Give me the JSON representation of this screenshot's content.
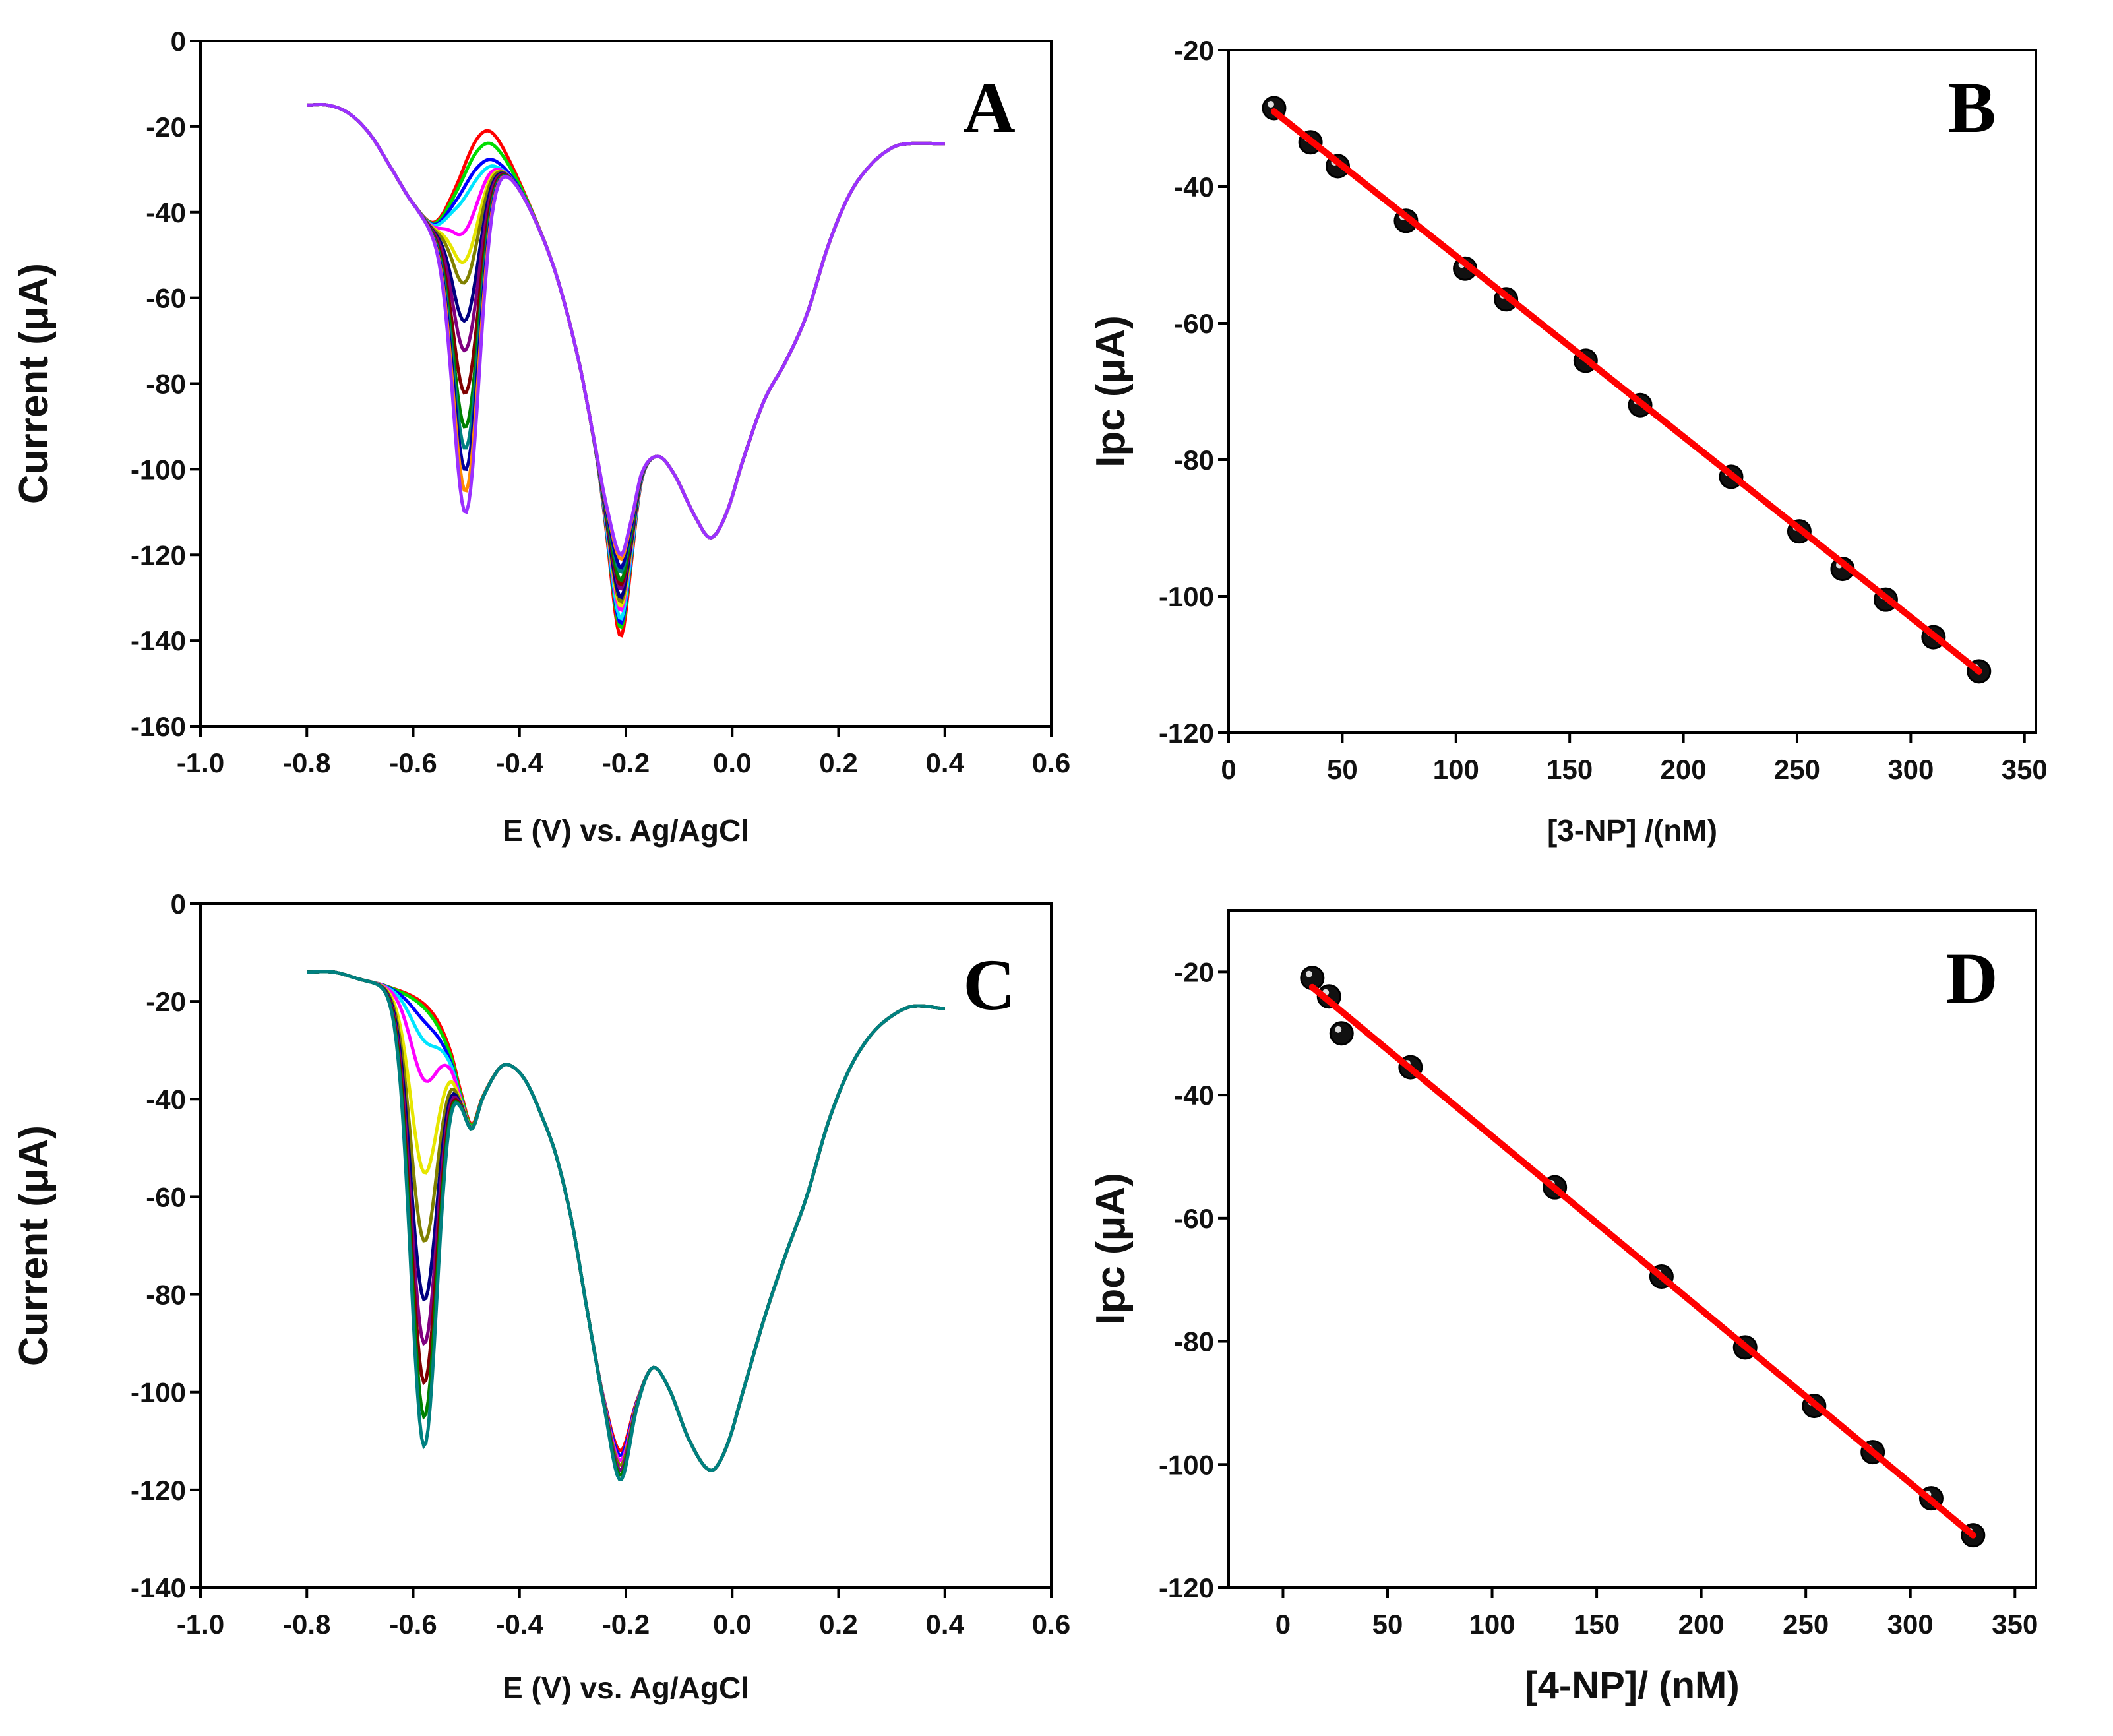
{
  "chart_data": [
    {
      "panel": "A",
      "type": "line",
      "xlabel": "E (V) vs. Ag/AgCl",
      "ylabel": "Current (μA)",
      "xlim": [
        -1.0,
        0.6
      ],
      "ylim": [
        -160,
        0
      ],
      "xticks": [
        "-1.0",
        "-0.8",
        "-0.6",
        "-0.4",
        "-0.2",
        "0.0",
        "0.2",
        "0.4",
        "0.6"
      ],
      "yticks": [
        "0",
        "-20",
        "-40",
        "-60",
        "-80",
        "-100",
        "-120",
        "-140",
        "-160"
      ],
      "grid": false,
      "baseline": [
        [
          -0.8,
          -15
        ],
        [
          -0.76,
          -15
        ],
        [
          -0.72,
          -17
        ],
        [
          -0.68,
          -22
        ],
        [
          -0.64,
          -30
        ],
        [
          -0.6,
          -38
        ],
        [
          -0.56,
          -43
        ],
        [
          -0.52,
          -38
        ],
        [
          -0.48,
          -31
        ],
        [
          -0.45,
          -29
        ],
        [
          -0.41,
          -33
        ],
        [
          -0.37,
          -42
        ],
        [
          -0.33,
          -55
        ],
        [
          -0.29,
          -74
        ],
        [
          -0.26,
          -93
        ],
        [
          -0.235,
          -110
        ],
        [
          -0.21,
          -122
        ],
        [
          -0.19,
          -113
        ],
        [
          -0.17,
          -101
        ],
        [
          -0.14,
          -97
        ],
        [
          -0.11,
          -101
        ],
        [
          -0.07,
          -111
        ],
        [
          -0.04,
          -116
        ],
        [
          -0.01,
          -110
        ],
        [
          0.02,
          -98
        ],
        [
          0.06,
          -84
        ],
        [
          0.1,
          -75
        ],
        [
          0.14,
          -64
        ],
        [
          0.18,
          -48
        ],
        [
          0.22,
          -36
        ],
        [
          0.26,
          -29
        ],
        [
          0.3,
          -25
        ],
        [
          0.33,
          -24
        ],
        [
          0.4,
          -24
        ]
      ],
      "peak_E": -0.5,
      "series": [
        {
          "color": "#ff0000",
          "peak_I": -26,
          "peak2_I": -139
        },
        {
          "color": "#00dd00",
          "peak_I": -29,
          "peak2_I": -137
        },
        {
          "color": "#0000ff",
          "peak_I": -33,
          "peak2_I": -136
        },
        {
          "color": "#00e5ff",
          "peak_I": -36,
          "peak2_I": -135
        },
        {
          "color": "#ff00ff",
          "peak_I": -44,
          "peak2_I": -133
        },
        {
          "color": "#e6e600",
          "peak_I": -51,
          "peak2_I": -132
        },
        {
          "color": "#808000",
          "peak_I": -56,
          "peak2_I": -131
        },
        {
          "color": "#000080",
          "peak_I": -65,
          "peak2_I": -130
        },
        {
          "color": "#800080",
          "peak_I": -72,
          "peak2_I": -128
        },
        {
          "color": "#800000",
          "peak_I": -82,
          "peak2_I": -127
        },
        {
          "color": "#008000",
          "peak_I": -90,
          "peak2_I": -126
        },
        {
          "color": "#008080",
          "peak_I": -95,
          "peak2_I": -124
        },
        {
          "color": "#0000a0",
          "peak_I": -100,
          "peak2_I": -123
        },
        {
          "color": "#ff8c00",
          "peak_I": -105,
          "peak2_I": -121
        },
        {
          "color": "#9b30ff",
          "peak_I": -110,
          "peak2_I": -120
        }
      ]
    },
    {
      "panel": "B",
      "type": "scatter",
      "xlabel": "[3-NP] /(nM)",
      "ylabel": "Ipc (μA)",
      "xlim": [
        0,
        355
      ],
      "ylim": [
        -120,
        -20
      ],
      "xticks": [
        "0",
        "50",
        "100",
        "150",
        "200",
        "250",
        "300",
        "350"
      ],
      "yticks": [
        "-20",
        "-40",
        "-60",
        "-80",
        "-100",
        "-120"
      ],
      "grid": false,
      "x": [
        20,
        36,
        48,
        78,
        104,
        122,
        157,
        181,
        221,
        251,
        270,
        289,
        310,
        330
      ],
      "y": [
        -28.5,
        -33.5,
        -37,
        -45,
        -52,
        -56.5,
        -65.5,
        -72,
        -82.5,
        -90.5,
        -96,
        -100.5,
        -106,
        -111
      ],
      "fit": {
        "x": [
          20,
          330
        ],
        "y": [
          -29,
          -111
        ],
        "color": "#ff0000"
      }
    },
    {
      "panel": "C",
      "type": "line",
      "xlabel": "E (V) vs. Ag/AgCl",
      "ylabel": "Current (μA)",
      "xlim": [
        -1.0,
        0.6
      ],
      "ylim": [
        -140,
        0
      ],
      "xticks": [
        "-1.0",
        "-0.8",
        "-0.6",
        "-0.4",
        "-0.2",
        "0.0",
        "0.2",
        "0.4",
        "0.6"
      ],
      "yticks": [
        "0",
        "-20",
        "-40",
        "-60",
        "-80",
        "-100",
        "-120",
        "-140"
      ],
      "grid": false,
      "baseline": [
        [
          -0.8,
          -14
        ],
        [
          -0.75,
          -14
        ],
        [
          -0.7,
          -15.5
        ],
        [
          -0.65,
          -17
        ],
        [
          -0.6,
          -20
        ],
        [
          -0.56,
          -25
        ],
        [
          -0.53,
          -32
        ],
        [
          -0.51,
          -40
        ],
        [
          -0.49,
          -46
        ],
        [
          -0.47,
          -40
        ],
        [
          -0.44,
          -34
        ],
        [
          -0.42,
          -33
        ],
        [
          -0.39,
          -36
        ],
        [
          -0.36,
          -43
        ],
        [
          -0.33,
          -52
        ],
        [
          -0.3,
          -66
        ],
        [
          -0.27,
          -85
        ],
        [
          -0.24,
          -102
        ],
        [
          -0.21,
          -112
        ],
        [
          -0.18,
          -102
        ],
        [
          -0.15,
          -95
        ],
        [
          -0.12,
          -99
        ],
        [
          -0.08,
          -110
        ],
        [
          -0.04,
          -116
        ],
        [
          -0.01,
          -111
        ],
        [
          0.02,
          -100
        ],
        [
          0.06,
          -85
        ],
        [
          0.1,
          -72
        ],
        [
          0.14,
          -60
        ],
        [
          0.18,
          -45
        ],
        [
          0.22,
          -34
        ],
        [
          0.26,
          -27
        ],
        [
          0.3,
          -23
        ],
        [
          0.34,
          -21
        ],
        [
          0.4,
          -21.5
        ]
      ],
      "peak_E": -0.58,
      "series": [
        {
          "color": "#ff0000",
          "peak_I": -20,
          "peak2_I": -112
        },
        {
          "color": "#00dd00",
          "peak_I": -21,
          "peak2_I": -113
        },
        {
          "color": "#0000ff",
          "peak_I": -24,
          "peak2_I": -113
        },
        {
          "color": "#00e5ff",
          "peak_I": -28,
          "peak2_I": -114
        },
        {
          "color": "#ff00ff",
          "peak_I": -36,
          "peak2_I": -114
        },
        {
          "color": "#e6e600",
          "peak_I": -55,
          "peak2_I": -115
        },
        {
          "color": "#808000",
          "peak_I": -69,
          "peak2_I": -115
        },
        {
          "color": "#000080",
          "peak_I": -81,
          "peak2_I": -116
        },
        {
          "color": "#800080",
          "peak_I": -90,
          "peak2_I": -116
        },
        {
          "color": "#800000",
          "peak_I": -98,
          "peak2_I": -117
        },
        {
          "color": "#008000",
          "peak_I": -105,
          "peak2_I": -117
        },
        {
          "color": "#008080",
          "peak_I": -111,
          "peak2_I": -118
        }
      ]
    },
    {
      "panel": "D",
      "type": "scatter",
      "xlabel": "[4-NP]/ (nM)",
      "ylabel": "Ipc (μA)",
      "xlim": [
        -26,
        360
      ],
      "ylim": [
        -120,
        -10
      ],
      "xticks": [
        "0",
        "50",
        "100",
        "150",
        "200",
        "250",
        "300",
        "350"
      ],
      "yticks": [
        "-20",
        "-40",
        "-60",
        "-80",
        "-100",
        "-120"
      ],
      "grid": false,
      "x": [
        14,
        22,
        28,
        61,
        130,
        181,
        221,
        254,
        282,
        310,
        330
      ],
      "y": [
        -21,
        -24,
        -30,
        -35.5,
        -55,
        -69.5,
        -81,
        -90.5,
        -98,
        -105.5,
        -111.5
      ],
      "fit": {
        "x": [
          14,
          330
        ],
        "y": [
          -22.5,
          -111.5
        ],
        "color": "#ff0000"
      }
    }
  ]
}
